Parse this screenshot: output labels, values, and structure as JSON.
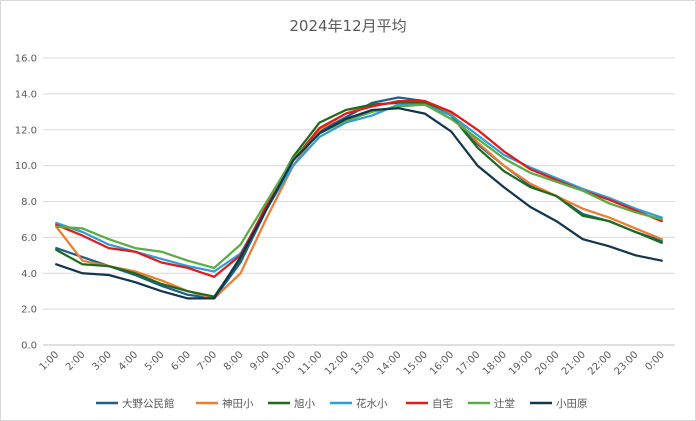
{
  "chart_data": {
    "type": "line",
    "title": "2024年12月平均",
    "xlabel": "",
    "ylabel": "",
    "ylim": [
      0,
      16
    ],
    "ytick_labels": [
      "0.0",
      "2.0",
      "4.0",
      "6.0",
      "8.0",
      "10.0",
      "12.0",
      "14.0",
      "16.0"
    ],
    "grid": true,
    "legend_position": "bottom",
    "categories": [
      "1:00",
      "2:00",
      "3:00",
      "4:00",
      "5:00",
      "6:00",
      "7:00",
      "8:00",
      "9:00",
      "10:00",
      "11:00",
      "12:00",
      "13:00",
      "14:00",
      "15:00",
      "16:00",
      "17:00",
      "18:00",
      "19:00",
      "20:00",
      "21:00",
      "22:00",
      "23:00",
      "0:00"
    ],
    "series": [
      {
        "name": "大野公民館",
        "color": "#1f5f8b",
        "values": [
          5.4,
          4.9,
          4.4,
          3.9,
          3.3,
          2.8,
          2.6,
          4.6,
          7.6,
          10.3,
          11.9,
          12.7,
          13.5,
          13.8,
          13.6,
          12.8,
          11.2,
          10.0,
          8.9,
          8.3,
          7.3,
          6.9,
          6.3,
          5.8
        ]
      },
      {
        "name": "神田小",
        "color": "#ed7d31",
        "values": [
          6.6,
          4.7,
          4.4,
          4.1,
          3.6,
          3.0,
          2.6,
          4.0,
          7.1,
          10.0,
          12.0,
          12.9,
          13.4,
          13.5,
          13.6,
          12.9,
          11.3,
          10.0,
          9.0,
          8.3,
          7.6,
          7.1,
          6.5,
          5.9
        ]
      },
      {
        "name": "旭小",
        "color": "#1e6b1e",
        "values": [
          5.3,
          4.5,
          4.4,
          4.0,
          3.4,
          3.0,
          2.7,
          4.8,
          7.8,
          10.5,
          12.4,
          13.1,
          13.4,
          13.5,
          13.5,
          12.8,
          11.0,
          9.7,
          8.8,
          8.3,
          7.2,
          6.9,
          6.3,
          5.7
        ]
      },
      {
        "name": "花水小",
        "color": "#2e9fd8",
        "values": [
          6.8,
          6.3,
          5.6,
          5.2,
          4.8,
          4.4,
          4.1,
          5.1,
          7.6,
          10.0,
          11.6,
          12.4,
          12.8,
          13.4,
          13.4,
          12.8,
          11.7,
          10.6,
          9.9,
          9.3,
          8.7,
          8.2,
          7.6,
          7.1
        ]
      },
      {
        "name": "自宅",
        "color": "#e31a1c",
        "values": [
          6.7,
          6.1,
          5.4,
          5.2,
          4.6,
          4.3,
          3.8,
          5.0,
          7.8,
          10.3,
          12.1,
          12.9,
          13.3,
          13.6,
          13.6,
          13.0,
          12.0,
          10.8,
          9.8,
          9.2,
          8.6,
          8.1,
          7.5,
          6.9
        ]
      },
      {
        "name": "辻堂",
        "color": "#5aac44",
        "values": [
          6.6,
          6.5,
          5.9,
          5.4,
          5.2,
          4.7,
          4.3,
          5.6,
          8.0,
          10.4,
          11.8,
          12.5,
          13.0,
          13.3,
          13.4,
          12.6,
          11.5,
          10.4,
          9.6,
          9.1,
          8.6,
          7.9,
          7.4,
          7.0
        ]
      },
      {
        "name": "小田原",
        "color": "#13364f",
        "values": [
          4.5,
          4.0,
          3.9,
          3.5,
          3.0,
          2.6,
          2.6,
          4.9,
          7.6,
          10.3,
          11.8,
          12.6,
          13.1,
          13.2,
          12.9,
          11.9,
          10.0,
          8.8,
          7.7,
          6.9,
          5.9,
          5.5,
          5.0,
          4.7
        ]
      }
    ]
  }
}
